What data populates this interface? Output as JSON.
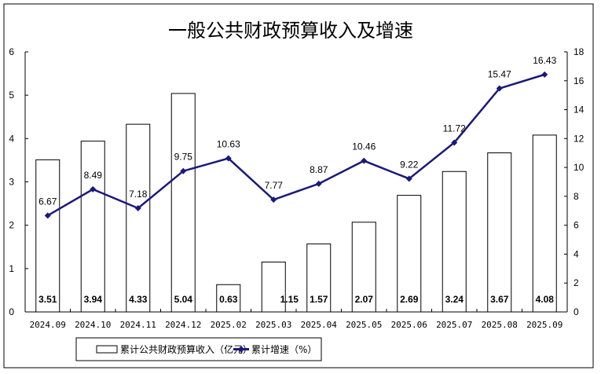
{
  "chart_data": {
    "type": "bar+line",
    "title": "一般公共财政预算收入及增速",
    "categories": [
      "2024.09",
      "2024.10",
      "2024.11",
      "2024.12",
      "2025.02",
      "2025.03",
      "2025.04",
      "2025.05",
      "2025.06",
      "2025.07",
      "2025.08",
      "2025.09"
    ],
    "series": [
      {
        "name": "累计公共财政预算收入（亿元）",
        "type": "bar",
        "axis": "left",
        "values": [
          3.51,
          3.94,
          4.33,
          5.04,
          0.63,
          1.15,
          1.57,
          2.07,
          2.69,
          3.24,
          3.67,
          4.08
        ],
        "labels": [
          "3.51",
          "3.94",
          "4.33",
          "5.04",
          "0.63",
          "1.15",
          "1.57",
          "2.07",
          "2.69",
          "3.24",
          "3.67",
          "4.08"
        ]
      },
      {
        "name": "累计增速（%）",
        "type": "line",
        "axis": "right",
        "color": "#1a1a7a",
        "values": [
          6.67,
          8.49,
          7.18,
          9.75,
          10.63,
          7.77,
          8.87,
          10.46,
          9.22,
          11.72,
          15.47,
          16.43
        ],
        "labels": [
          "6.67",
          "8.49",
          "7.18",
          "9.75",
          "10.63",
          "7.77",
          "8.87",
          "10.46",
          "9.22",
          "11.72",
          "15.47",
          "16.43"
        ]
      }
    ],
    "y_left": {
      "range": [
        0,
        6
      ],
      "ticks": [
        "0",
        "1",
        "2",
        "3",
        "4",
        "5",
        "6"
      ]
    },
    "y_right": {
      "range": [
        0,
        18
      ],
      "ticks": [
        "0",
        "2",
        "4",
        "6",
        "8",
        "10",
        "12",
        "14",
        "16",
        "18"
      ]
    },
    "grid": false,
    "legend_position": "bottom"
  }
}
